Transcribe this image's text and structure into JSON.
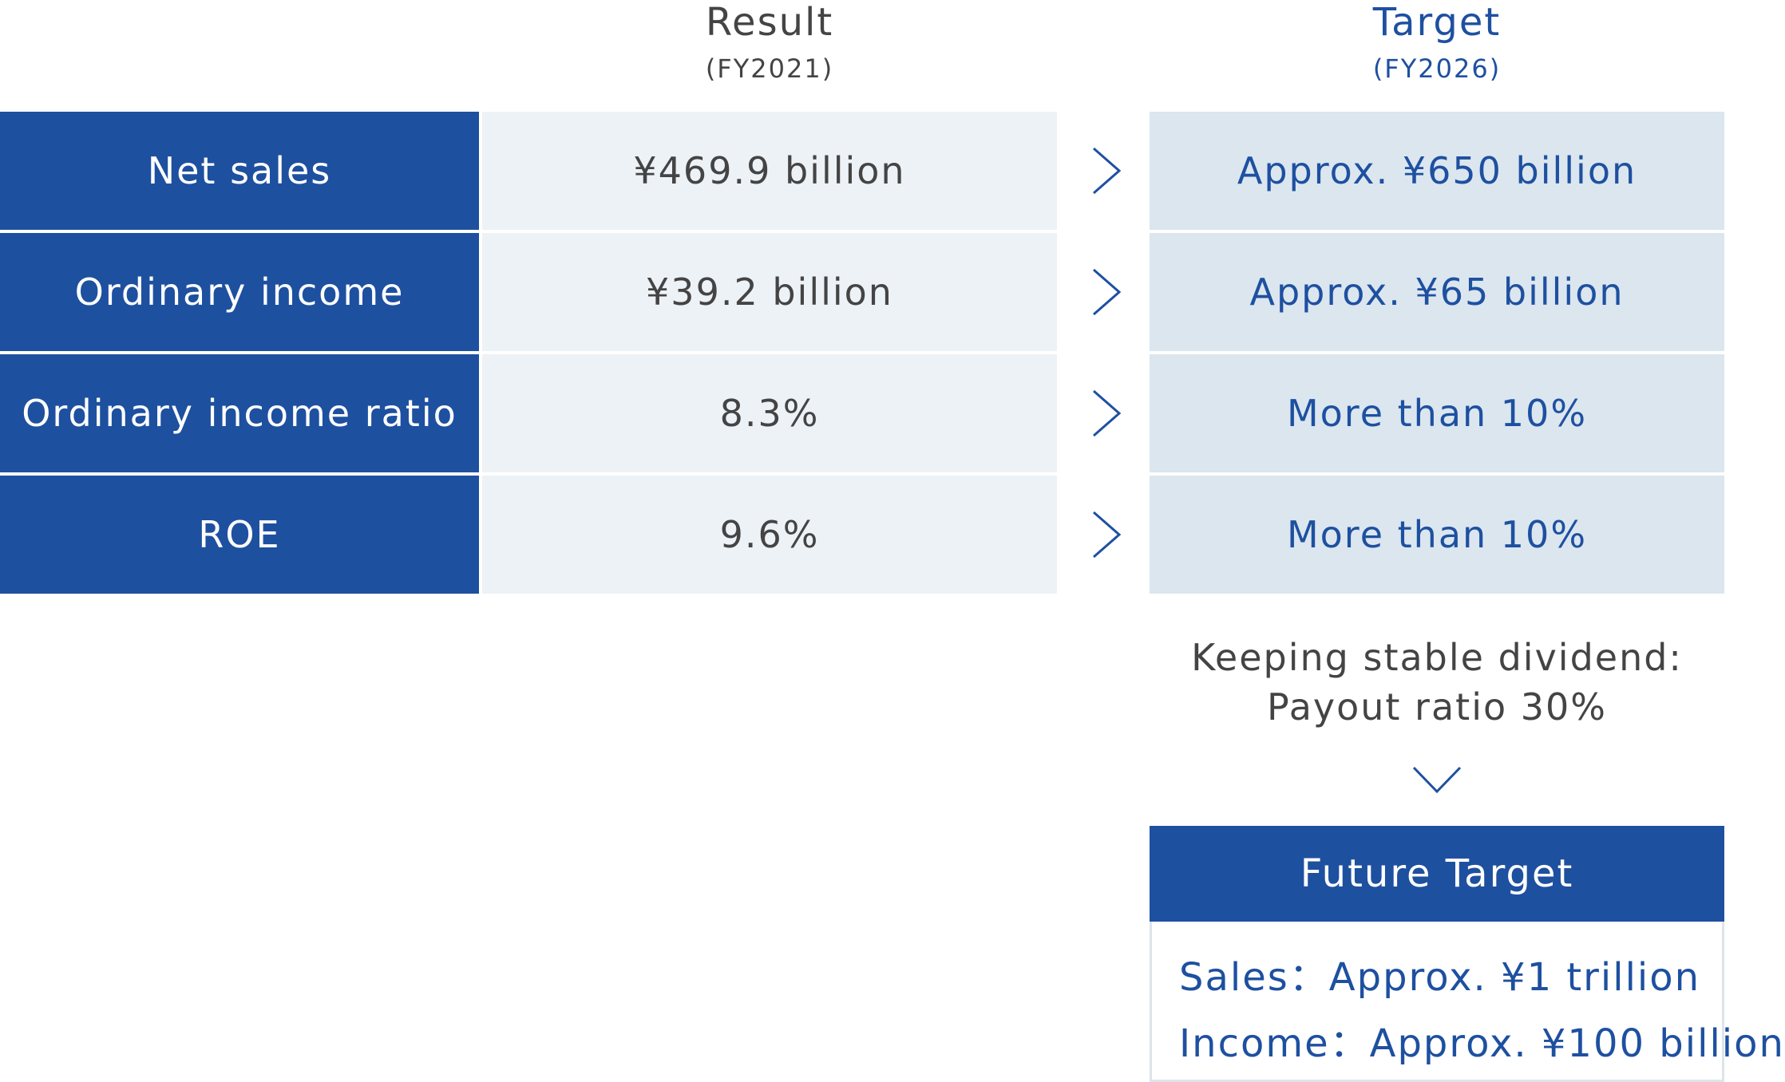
{
  "header": {
    "result_title": "Result",
    "result_period": "(FY2021)",
    "target_title": "Target",
    "target_period": "(FY2026)"
  },
  "rows": [
    {
      "label": "Net sales",
      "result": "¥469.9 billion",
      "target": "Approx. ¥650 billion"
    },
    {
      "label": "Ordinary income",
      "result": "¥39.2 billion",
      "target": "Approx. ¥65 billion"
    },
    {
      "label": "Ordinary income ratio",
      "result": "8.3%",
      "target": "More than 10%"
    },
    {
      "label": "ROE",
      "result": "9.6%",
      "target": "More than 10%"
    }
  ],
  "dividend": {
    "line1": "Keeping stable dividend:",
    "line2": "Payout ratio 30%"
  },
  "future": {
    "title": "Future Target",
    "sales": "Sales：Approx. ¥1 trillion",
    "income": "Income：Approx. ¥100 billion"
  },
  "colors": {
    "primary_blue": "#1e50a0",
    "result_bg": "#edf2f6",
    "target_bg": "#dbe6ef",
    "text_dark": "#444444"
  },
  "icons": {
    "row_arrow": "chevron-right-icon",
    "down_arrow": "chevron-down-icon"
  }
}
